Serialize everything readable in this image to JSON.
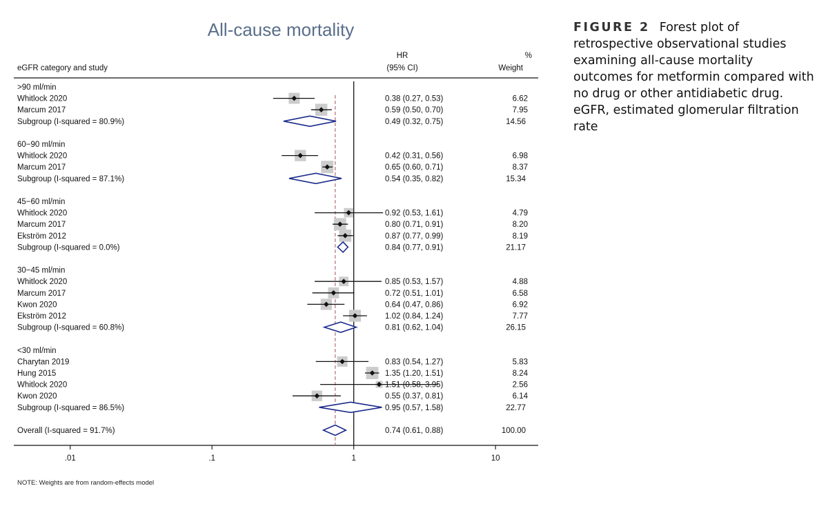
{
  "caption": {
    "label": "FIGURE 2",
    "text": "Forest plot of retrospective observational studies examining all-cause mortality outcomes for metformin compared with no drug or other antidiabetic drug. eGFR, estimated glomerular filtration rate"
  },
  "note": "NOTE: Weights are from random-effects model",
  "chart_data": {
    "type": "forest",
    "title": "All-cause mortality",
    "columns": {
      "study": "eGFR category and study",
      "hr_line1": "HR",
      "hr_line2": "(95% CI)",
      "weight_line1": "%",
      "weight_line2": "Weight"
    },
    "x_scale": "log",
    "xlim": [
      0.004,
      20
    ],
    "x_ticks": [
      {
        "value": 0.01,
        "label": ".01"
      },
      {
        "value": 0.1,
        "label": ".1"
      },
      {
        "value": 1,
        "label": "1"
      },
      {
        "value": 10,
        "label": "10"
      }
    ],
    "null_line": 1,
    "overall_reference": 0.74,
    "colors": {
      "title": "#5a6e8a",
      "diamond": "#1a2a8a",
      "reference": "#b07070",
      "box": "#cccccc"
    },
    "rows": [
      {
        "type": "header",
        "label": ">90 ml/min"
      },
      {
        "type": "study",
        "label": "Whitlock 2020",
        "hr": 0.38,
        "lo": 0.27,
        "hi": 0.53,
        "ci": "0.38 (0.27, 0.53)",
        "weight": "6.62",
        "w": 6.62
      },
      {
        "type": "study",
        "label": "Marcum 2017",
        "hr": 0.59,
        "lo": 0.5,
        "hi": 0.7,
        "ci": "0.59 (0.50, 0.70)",
        "weight": "7.95",
        "w": 7.95
      },
      {
        "type": "subgroup",
        "label": "Subgroup (I-squared = 80.9%)",
        "hr": 0.49,
        "lo": 0.32,
        "hi": 0.75,
        "ci": "0.49 (0.32, 0.75)",
        "weight": "14.56"
      },
      {
        "type": "header",
        "label": "60−90 ml/min"
      },
      {
        "type": "study",
        "label": "Whitlock 2020",
        "hr": 0.42,
        "lo": 0.31,
        "hi": 0.56,
        "ci": "0.42 (0.31, 0.56)",
        "weight": "6.98",
        "w": 6.98
      },
      {
        "type": "study",
        "label": "Marcum 2017",
        "hr": 0.65,
        "lo": 0.6,
        "hi": 0.71,
        "ci": "0.65 (0.60, 0.71)",
        "weight": "8.37",
        "w": 8.37
      },
      {
        "type": "subgroup",
        "label": "Subgroup (I-squared = 87.1%)",
        "hr": 0.54,
        "lo": 0.35,
        "hi": 0.82,
        "ci": "0.54 (0.35, 0.82)",
        "weight": "15.34"
      },
      {
        "type": "header",
        "label": "45−60 ml/min"
      },
      {
        "type": "study",
        "label": "Whitlock 2020",
        "hr": 0.92,
        "lo": 0.53,
        "hi": 1.61,
        "ci": "0.92 (0.53, 1.61)",
        "weight": "4.79",
        "w": 4.79
      },
      {
        "type": "study",
        "label": "Marcum 2017",
        "hr": 0.8,
        "lo": 0.71,
        "hi": 0.91,
        "ci": "0.80 (0.71, 0.91)",
        "weight": "8.20",
        "w": 8.2
      },
      {
        "type": "study",
        "label": "Ekström 2012",
        "hr": 0.87,
        "lo": 0.77,
        "hi": 0.99,
        "ci": "0.87 (0.77, 0.99)",
        "weight": "8.19",
        "w": 8.19
      },
      {
        "type": "subgroup",
        "label": "Subgroup (I-squared = 0.0%)",
        "hr": 0.84,
        "lo": 0.77,
        "hi": 0.91,
        "ci": "0.84 (0.77, 0.91)",
        "weight": "21.17"
      },
      {
        "type": "header",
        "label": "30−45 ml/min"
      },
      {
        "type": "study",
        "label": "Whitlock 2020",
        "hr": 0.85,
        "lo": 0.53,
        "hi": 1.57,
        "ci": "0.85 (0.53, 1.57)",
        "weight": "4.88",
        "w": 4.88
      },
      {
        "type": "study",
        "label": "Marcum 2017",
        "hr": 0.72,
        "lo": 0.51,
        "hi": 1.01,
        "ci": "0.72 (0.51, 1.01)",
        "weight": "6.58",
        "w": 6.58
      },
      {
        "type": "study",
        "label": "Kwon 2020",
        "hr": 0.64,
        "lo": 0.47,
        "hi": 0.86,
        "ci": "0.64 (0.47, 0.86)",
        "weight": "6.92",
        "w": 6.92
      },
      {
        "type": "study",
        "label": "Ekström 2012",
        "hr": 1.02,
        "lo": 0.84,
        "hi": 1.24,
        "ci": "1.02 (0.84, 1.24)",
        "weight": "7.77",
        "w": 7.77
      },
      {
        "type": "subgroup",
        "label": "Subgroup (I-squared = 60.8%)",
        "hr": 0.81,
        "lo": 0.62,
        "hi": 1.04,
        "ci": "0.81 (0.62, 1.04)",
        "weight": "26.15"
      },
      {
        "type": "header",
        "label": "<30 ml/min"
      },
      {
        "type": "study",
        "label": "Charytan 2019",
        "hr": 0.83,
        "lo": 0.54,
        "hi": 1.27,
        "ci": "0.83 (0.54, 1.27)",
        "weight": "5.83",
        "w": 5.83
      },
      {
        "type": "study",
        "label": "Hung 2015",
        "hr": 1.35,
        "lo": 1.2,
        "hi": 1.51,
        "ci": "1.35 (1.20, 1.51)",
        "weight": "8.24",
        "w": 8.24
      },
      {
        "type": "study",
        "label": "Whitlock 2020",
        "hr": 1.51,
        "lo": 0.58,
        "hi": 3.95,
        "ci": "1.51 (0.58, 3.95)",
        "weight": "2.56",
        "w": 2.56
      },
      {
        "type": "study",
        "label": "Kwon 2020",
        "hr": 0.55,
        "lo": 0.37,
        "hi": 0.81,
        "ci": "0.55 (0.37, 0.81)",
        "weight": "6.14",
        "w": 6.14
      },
      {
        "type": "subgroup",
        "label": "Subgroup (I-squared = 86.5%)",
        "hr": 0.95,
        "lo": 0.57,
        "hi": 1.58,
        "ci": "0.95 (0.57, 1.58)",
        "weight": "22.77"
      },
      {
        "type": "overall",
        "label": "Overall (I-squared = 91.7%)",
        "hr": 0.74,
        "lo": 0.61,
        "hi": 0.88,
        "ci": "0.74 (0.61, 0.88)",
        "weight": "100.00"
      }
    ]
  }
}
